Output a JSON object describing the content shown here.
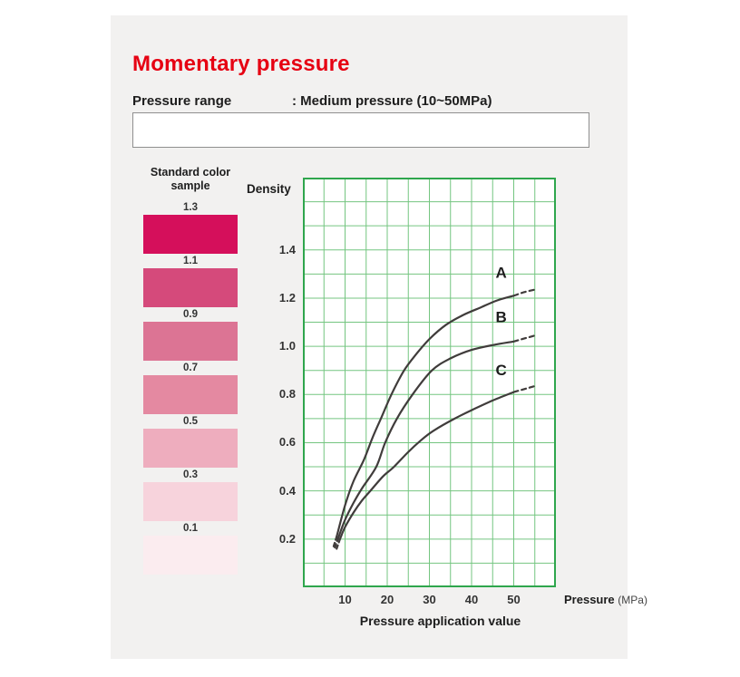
{
  "page": {
    "title": "Momentary pressure",
    "title_color": "#e60012"
  },
  "pressure_range": {
    "label": "Pressure range",
    "value": ": Medium pressure (10~50MPa)"
  },
  "note_box": {
    "text": ""
  },
  "color_samples": {
    "heading": "Standard color sample",
    "items": [
      {
        "density": "1.3",
        "color": "#d50f5b"
      },
      {
        "density": "1.1",
        "color": "#d54a7b"
      },
      {
        "density": "0.9",
        "color": "#dc7494"
      },
      {
        "density": "0.7",
        "color": "#e489a1"
      },
      {
        "density": "0.5",
        "color": "#eeadbe"
      },
      {
        "density": "0.3",
        "color": "#f7d3dc"
      },
      {
        "density": "0.1",
        "color": "#fbecef"
      }
    ]
  },
  "chart_data": {
    "type": "line",
    "title": "",
    "ylabel": "Density",
    "xlabel": "Pressure application value",
    "x_unit_bold": "Pressure",
    "x_unit_paren": "(MPa)",
    "xlim": [
      0,
      60
    ],
    "ylim": [
      0,
      1.7
    ],
    "x_ticks": [
      10,
      20,
      30,
      40,
      50
    ],
    "y_ticks": [
      1.4,
      1.2,
      1.0,
      0.8,
      0.6,
      0.4,
      0.2
    ],
    "grid": {
      "cols": 12,
      "rows": 17,
      "on": true,
      "line_color": "#74c580",
      "border_color": "#2fa64d"
    },
    "curve_color": "#403c3b",
    "series": [
      {
        "name": "A",
        "label_at": [
          47,
          1.285
        ],
        "dash_start": [
          [
            7.3,
            0.17
          ],
          [
            8,
            0.21
          ]
        ],
        "points": [
          [
            8,
            0.21
          ],
          [
            10,
            0.34
          ],
          [
            12,
            0.44
          ],
          [
            14.5,
            0.53
          ],
          [
            16.5,
            0.62
          ],
          [
            18.5,
            0.7
          ],
          [
            21,
            0.8
          ],
          [
            24,
            0.9
          ],
          [
            27,
            0.97
          ],
          [
            30,
            1.03
          ],
          [
            34,
            1.09
          ],
          [
            38,
            1.13
          ],
          [
            42,
            1.16
          ],
          [
            46,
            1.19
          ],
          [
            50,
            1.21
          ]
        ],
        "dash_end": [
          [
            50,
            1.21
          ],
          [
            52.5,
            1.225
          ],
          [
            55,
            1.235
          ]
        ]
      },
      {
        "name": "B",
        "label_at": [
          47,
          1.1
        ],
        "dash_start": [
          [
            7.6,
            0.165
          ],
          [
            8.3,
            0.2
          ]
        ],
        "points": [
          [
            8.3,
            0.2
          ],
          [
            10,
            0.28
          ],
          [
            12,
            0.35
          ],
          [
            14,
            0.41
          ],
          [
            17.4,
            0.5
          ],
          [
            19.5,
            0.6
          ],
          [
            22.3,
            0.7
          ],
          [
            26,
            0.8
          ],
          [
            30.6,
            0.9
          ],
          [
            35,
            0.95
          ],
          [
            40,
            0.985
          ],
          [
            45,
            1.005
          ],
          [
            50,
            1.02
          ]
        ],
        "dash_end": [
          [
            50,
            1.02
          ],
          [
            55,
            1.045
          ]
        ]
      },
      {
        "name": "C",
        "label_at": [
          47,
          0.88
        ],
        "dash_start": [
          [
            8,
            0.16
          ],
          [
            8.8,
            0.2
          ]
        ],
        "points": [
          [
            8.8,
            0.2
          ],
          [
            10,
            0.25
          ],
          [
            12,
            0.31
          ],
          [
            14,
            0.36
          ],
          [
            16,
            0.4
          ],
          [
            19,
            0.46
          ],
          [
            21.6,
            0.5
          ],
          [
            24.9,
            0.56
          ],
          [
            28,
            0.61
          ],
          [
            31,
            0.65
          ],
          [
            36,
            0.7
          ],
          [
            40,
            0.735
          ],
          [
            45,
            0.775
          ],
          [
            50,
            0.81
          ]
        ],
        "dash_end": [
          [
            50,
            0.81
          ],
          [
            55,
            0.835
          ]
        ]
      }
    ]
  }
}
